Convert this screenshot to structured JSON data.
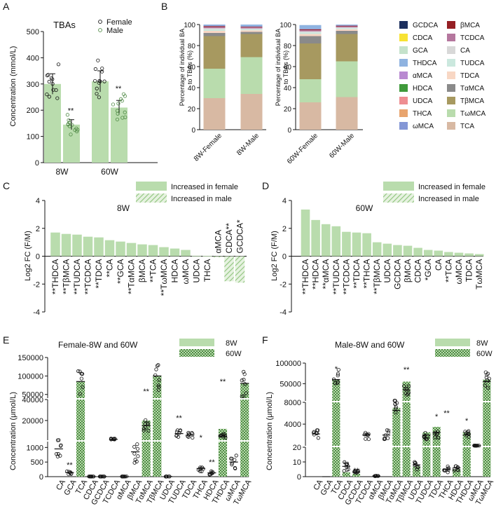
{
  "colors": {
    "green": "#b9dcad",
    "hatch_bg": "#e6f2e0",
    "hatch_line": "#8fc47d",
    "black": "#111111",
    "ba": {
      "GCDCA": "#1c2f5e",
      "CDCA": "#f7e233",
      "GCA": "#c5e2cb",
      "THDCA": "#8fb3e0",
      "αMCA": "#b98ad1",
      "HDCA": "#3f9a3b",
      "UDCA": "#ee8e92",
      "THCA": "#e8a46e",
      "ωMCA": "#8497d6",
      "βMCA": "#951f24",
      "TCDCA": "#b5779e",
      "CA": "#d8d8d8",
      "TUDCA": "#cbe8de",
      "TDCA": "#f8d7c4",
      "TαMCA": "#8a8a8a",
      "TβMCA": "#a79960",
      "TωMCA": "#b9dcad",
      "TCA": "#d8b9a3"
    }
  },
  "panel_A": {
    "letter": "A",
    "title": "TBAs",
    "legend": [
      "Female",
      "Male"
    ],
    "ylabel": "Concentration (mmol/L)",
    "yticks": [
      "0",
      "100",
      "200",
      "300",
      "400",
      "500"
    ],
    "sig": [
      "**",
      "**"
    ]
  },
  "panel_B": {
    "letter": "B",
    "ylabel_line1": "Percentage of individual BA",
    "ylabel_line2": "to TBAs (%)",
    "yticks": [
      "0",
      "20",
      "40",
      "60",
      "80",
      "100"
    ],
    "legend": [
      "GCDCA",
      "βMCA",
      "CDCA",
      "TCDCA",
      "GCA",
      "CA",
      "THDCA",
      "TUDCA",
      "αMCA",
      "TDCA",
      "HDCA",
      "TαMCA",
      "UDCA",
      "TβMCA",
      "THCA",
      "TωMCA",
      "ωMCA",
      "TCA"
    ]
  },
  "panel_C": {
    "letter": "C",
    "title": "8W",
    "legend": [
      "Increased in female",
      "Increased in male"
    ],
    "ylabel": "Log2 FC (F/M)",
    "yticks": [
      "-4",
      "-2",
      "0",
      "2",
      "4"
    ],
    "female_labels": [
      "**THDCA",
      "**TβMCA",
      "**TUDCA",
      "**TCDCA",
      "**TDCA",
      "**CA",
      "**GCA",
      "**TαMCA",
      "βMCA",
      "**TCA",
      "**TωMCA",
      "HDCA",
      "ωMCA",
      "UDCA",
      "THCA"
    ],
    "male_labels": [
      "αMCA",
      "CDCA**",
      "GCDCA*"
    ]
  },
  "panel_D": {
    "letter": "D",
    "title": "60W",
    "legend": [
      "Increased in female",
      "Increased in male"
    ],
    "ylabel": "Log2 FC (F/M)",
    "yticks": [
      "-4",
      "-2",
      "0",
      "2",
      "4"
    ],
    "labels": [
      "**THDCA",
      "**HDCA",
      "**αMCA",
      "**TUDCA",
      "**TCDCA",
      "**TDCA",
      "**THCA",
      "**TβMCA",
      "UDCA",
      "GCDCA",
      "βMCA",
      "CDCA",
      "*GCA",
      "CA",
      "**TCA",
      "ωMCA",
      "TDCA",
      "TωMCA"
    ]
  },
  "panel_E": {
    "letter": "E",
    "title": "Female-8W and 60W",
    "legend": [
      "8W",
      "60W"
    ],
    "ylabel": "Concentration (μmol/L)",
    "yticks_top": [
      "50000",
      "100000",
      "150000"
    ],
    "yticks_mid": [
      "20000",
      "40000"
    ],
    "yticks_low": [
      "0",
      "500",
      "1000"
    ],
    "categories": [
      "CA",
      "GCA",
      "TCA",
      "CDCA",
      "GCDCA",
      "TCDCA",
      "αMCA",
      "βMCA",
      "TαMCA",
      "TβMCA",
      "UDCA",
      "TUDCA",
      "TDCA",
      "THCA",
      "HDCA",
      "THDCA",
      "ωMCA",
      "TωMCA"
    ],
    "sig": [
      "**",
      "**",
      "**",
      "*",
      "**",
      "**"
    ]
  },
  "panel_F": {
    "letter": "F",
    "title": "Male-8W and 60W",
    "legend": [
      "8W",
      "60W"
    ],
    "ylabel": "Concentration (μmol/L)",
    "yticks_top": [
      "50000",
      "100000"
    ],
    "yticks_mid": [
      "4000",
      "8000"
    ],
    "yticks_low": [
      "0",
      "10",
      "20"
    ],
    "categories": [
      "CA",
      "GCA",
      "TCA",
      "CDCA",
      "GCDCA",
      "TCDCA",
      "αMCA",
      "βMCA",
      "TαMCA",
      "TβMCA",
      "UDCA",
      "TUDCA",
      "TDCA",
      "THCA",
      "HDCA",
      "THDCA",
      "ωMCA",
      "TωMCA"
    ],
    "sig": [
      "*",
      "**",
      "**",
      "**",
      "*",
      "**",
      "*",
      "**"
    ]
  },
  "chart_data": [
    {
      "id": "A",
      "type": "bar",
      "title": "TBAs",
      "ylabel": "Concentration (mmol/L)",
      "ylim": [
        0,
        500
      ],
      "categories": [
        "8W",
        "60W"
      ],
      "series": [
        {
          "name": "Female",
          "values": [
            300,
            310
          ]
        },
        {
          "name": "Male",
          "values": [
            145,
            210
          ]
        }
      ]
    },
    {
      "id": "B",
      "type": "bar",
      "stacked": true,
      "ylabel": "Percentage of individual BA to TBAs (%)",
      "ylim": [
        0,
        100
      ],
      "categories": [
        "8W-Female",
        "8W-Male",
        "60W-Female",
        "60W-Male"
      ],
      "series": [
        {
          "name": "TCA",
          "values": [
            30,
            34,
            26,
            31
          ]
        },
        {
          "name": "TωMCA",
          "values": [
            28,
            35,
            22,
            34
          ]
        },
        {
          "name": "TβMCA",
          "values": [
            31,
            22,
            34,
            26
          ]
        },
        {
          "name": "TαMCA",
          "values": [
            3,
            2,
            7,
            3
          ]
        },
        {
          "name": "TDCA",
          "values": [
            2,
            1.5,
            2,
            1.5
          ]
        },
        {
          "name": "TUDCA",
          "values": [
            1.5,
            1,
            1.5,
            1
          ]
        },
        {
          "name": "CA",
          "values": [
            1,
            0.8,
            1,
            0.8
          ]
        },
        {
          "name": "TCDCA",
          "values": [
            1.2,
            1,
            1.2,
            1
          ]
        },
        {
          "name": "βMCA",
          "values": [
            0.8,
            0.6,
            0.8,
            0.6
          ]
        },
        {
          "name": "ωMCA",
          "values": [
            0.5,
            0.5,
            0.5,
            0.5
          ]
        },
        {
          "name": "THDCA",
          "values": [
            1,
            1.6,
            3.5,
            0.6
          ]
        }
      ]
    },
    {
      "id": "C",
      "type": "bar",
      "title": "8W",
      "ylabel": "Log2 FC (F/M)",
      "ylim": [
        -4,
        4
      ],
      "categories": [
        "THDCA",
        "TβMCA",
        "TUDCA",
        "TCDCA",
        "TDCA",
        "CA",
        "GCA",
        "TαMCA",
        "βMCA",
        "TCA",
        "TωMCA",
        "HDCA",
        "ωMCA",
        "UDCA",
        "THCA",
        "αMCA",
        "CDCA",
        "GCDCA"
      ],
      "values": [
        1.7,
        1.6,
        1.55,
        1.4,
        1.35,
        1.15,
        1.05,
        0.95,
        0.85,
        0.8,
        0.65,
        0.55,
        0.45,
        0.03,
        0.02,
        -0.08,
        -1.8,
        -1.9
      ]
    },
    {
      "id": "D",
      "type": "bar",
      "title": "60W",
      "ylabel": "Log2 FC (F/M)",
      "ylim": [
        -4,
        4
      ],
      "categories": [
        "THDCA",
        "HDCA",
        "αMCA",
        "TUDCA",
        "TCDCA",
        "TDCA",
        "THCA",
        "TβMCA",
        "UDCA",
        "GCDCA",
        "βMCA",
        "CDCA",
        "GCA",
        "CA",
        "TCA",
        "ωMCA",
        "TDCA",
        "TωMCA"
      ],
      "values": [
        3.35,
        2.6,
        2.3,
        2.15,
        1.75,
        1.7,
        1.65,
        1.0,
        0.9,
        0.8,
        0.75,
        0.6,
        0.45,
        0.4,
        0.3,
        0.25,
        0.2,
        0.15
      ]
    },
    {
      "id": "E",
      "type": "bar",
      "title": "Female-8W and 60W",
      "ylabel": "Concentration (μmol/L)",
      "categories": [
        "CA",
        "GCA",
        "TCA",
        "CDCA",
        "GCDCA",
        "TCDCA",
        "αMCA",
        "βMCA",
        "TαMCA",
        "TβMCA",
        "UDCA",
        "TUDCA",
        "TDCA",
        "THCA",
        "HDCA",
        "THDCA",
        "ωMCA",
        "TωMCA"
      ],
      "series": [
        {
          "name": "8W",
          "values": [
            950,
            140,
            85000,
            5,
            5,
            2000,
            5,
            850,
            15000,
            100000,
            5,
            7500,
            6000,
            280,
            130,
            5000,
            500,
            80000
          ]
        },
        {
          "name": "60W",
          "values": [
            0,
            0,
            85000,
            0,
            0,
            0,
            0,
            0,
            20000,
            100000,
            0,
            0,
            0,
            0,
            0,
            12000,
            0,
            80000
          ]
        }
      ]
    },
    {
      "id": "F",
      "type": "bar",
      "title": "Male-8W and 60W",
      "ylabel": "Concentration (μmol/L)",
      "categories": [
        "CA",
        "GCA",
        "TCA",
        "CDCA",
        "GCDCA",
        "TCDCA",
        "αMCA",
        "βMCA",
        "TαMCA",
        "TβMCA",
        "UDCA",
        "TUDCA",
        "TDCA",
        "THCA",
        "HDCA",
        "THDCA",
        "ωMCA",
        "TωMCA"
      ],
      "series": [
        {
          "name": "8W",
          "values": [
            2200,
            0,
            60000,
            7,
            3,
            2000,
            0.5,
            2000,
            6500,
            35000,
            8,
            2000,
            2500,
            5,
            6,
            2000,
            50,
            55000
          ]
        },
        {
          "name": "60W",
          "values": [
            0,
            0,
            60000,
            3,
            2,
            0,
            0,
            0,
            7000,
            55000,
            7,
            2500,
            3500,
            0,
            5,
            2500,
            0,
            60000
          ]
        }
      ]
    }
  ]
}
